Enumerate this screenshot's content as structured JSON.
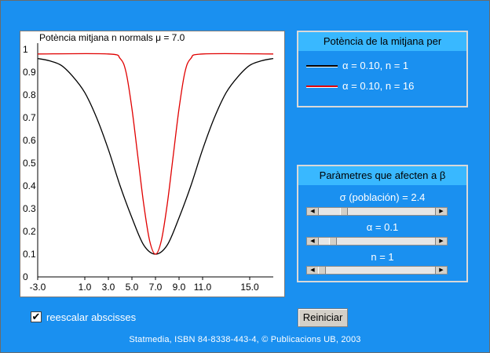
{
  "plot": {
    "title": "Potència mitjana n normals μ = 7.0"
  },
  "legend": {
    "title": "Potència de la mitjana per",
    "items": [
      {
        "label": "α = 0.10, n = 1",
        "color": "#000000"
      },
      {
        "label": "α = 0.10, n = 16",
        "color": "#e00000"
      }
    ]
  },
  "params": {
    "title": "Paràmetres que afecten a β",
    "sigma_label": "σ (población)  = 2.4",
    "sigma_level": 0.2,
    "alpha_label": "α = 0.1",
    "alpha_level": 0.1,
    "n_label": "n = 1",
    "n_level": 0.0
  },
  "controls": {
    "rescale_label": "reescalar abscisses",
    "rescale_checked": true,
    "rescale_mark": "✔",
    "reset_label": "Reiniciar"
  },
  "footer": "Statmedia, ISBN 84-8338-443-4, © Publicacions UB, 2003",
  "chart_data": {
    "type": "line",
    "title": "Potència mitjana n normals μ = 7.0",
    "xlabel": "",
    "ylabel": "",
    "xlim": [
      -3.0,
      17.0
    ],
    "ylim": [
      0,
      1
    ],
    "x_ticks": [
      "-3.0",
      "1.0",
      "3.0",
      "5.0",
      "7.0",
      "9.0",
      "11.0",
      "15.0"
    ],
    "y_ticks": [
      "0",
      "0.1",
      "0.2",
      "0.3",
      "0.4",
      "0.5",
      "0.6",
      "0.7",
      "0.8",
      "0.9",
      "1"
    ],
    "grid": false,
    "series": [
      {
        "name": "α = 0.10, n = 1",
        "color": "#000000",
        "x": [
          -3,
          -2,
          -1,
          0,
          1,
          2,
          3,
          4,
          5,
          6,
          7,
          8,
          9,
          10,
          11,
          12,
          13,
          14,
          15,
          16,
          17
        ],
        "y": [
          0.96,
          0.95,
          0.93,
          0.88,
          0.81,
          0.7,
          0.56,
          0.4,
          0.26,
          0.14,
          0.1,
          0.14,
          0.26,
          0.4,
          0.56,
          0.7,
          0.81,
          0.88,
          0.93,
          0.95,
          0.96
        ]
      },
      {
        "name": "α = 0.10, n = 16",
        "color": "#e00000",
        "x": [
          -3,
          3,
          4,
          4.5,
          5,
          5.5,
          6,
          6.5,
          7,
          7.5,
          8,
          8.5,
          9,
          9.5,
          10,
          11,
          17
        ],
        "y": [
          0.98,
          0.98,
          0.96,
          0.9,
          0.74,
          0.53,
          0.32,
          0.16,
          0.1,
          0.16,
          0.32,
          0.53,
          0.74,
          0.9,
          0.96,
          0.98,
          0.98
        ]
      }
    ]
  }
}
